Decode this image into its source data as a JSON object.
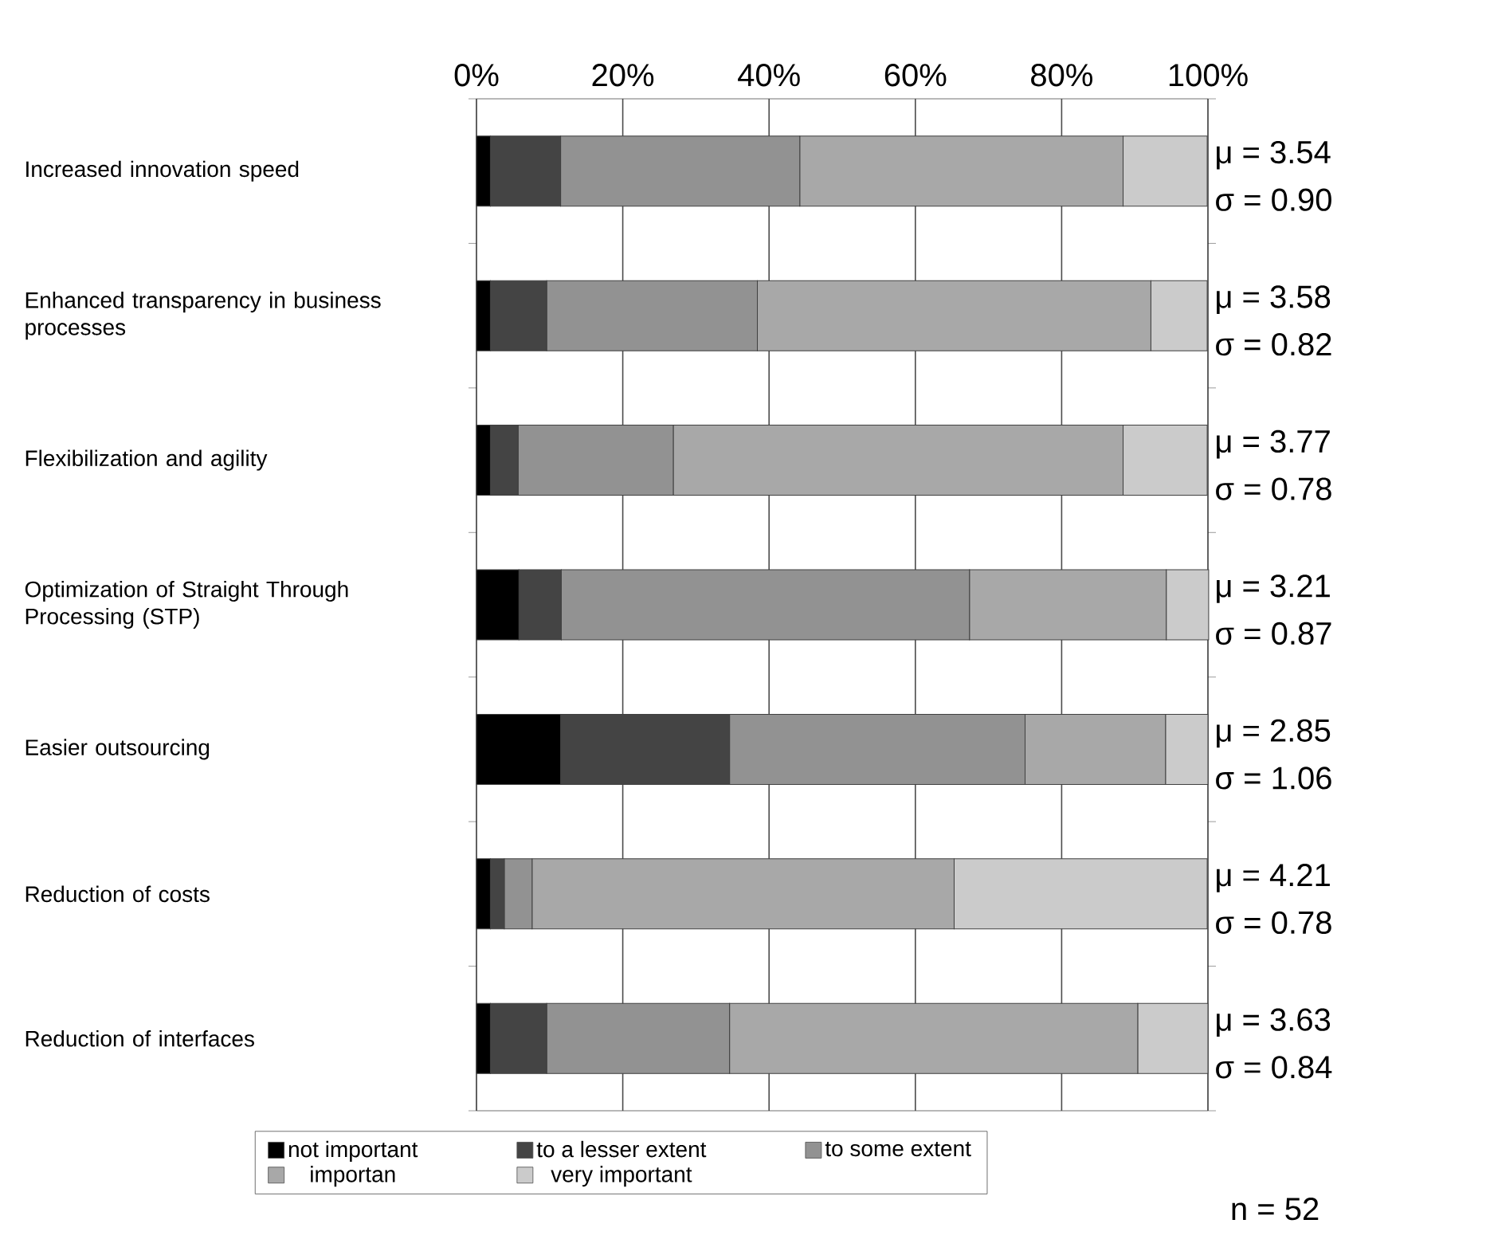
{
  "chart_data": {
    "type": "bar",
    "orientation": "horizontal",
    "stacked": true,
    "categories": [
      "Increased innovation speed",
      "Enhanced transparency in business processes",
      "Flexibilization and agility",
      "Optimization of Straight Through Processing (STP)",
      "Easier outsourcing",
      "Reduction of costs",
      "Reduction of interfaces"
    ],
    "series": [
      {
        "name": "not important",
        "color": "#000000",
        "values": [
          1.9,
          1.9,
          1.9,
          5.8,
          11.5,
          1.9,
          1.9
        ]
      },
      {
        "name": "to a lesser extent",
        "color": "#444444",
        "values": [
          9.6,
          7.7,
          3.8,
          5.8,
          23.1,
          1.9,
          7.7
        ]
      },
      {
        "name": "to some extent",
        "color": "#929292",
        "values": [
          32.7,
          28.8,
          21.2,
          55.8,
          40.4,
          3.8,
          25.0
        ]
      },
      {
        "name": "importan",
        "color": "#a8a8a8",
        "values": [
          44.2,
          53.8,
          61.5,
          26.9,
          19.2,
          57.7,
          55.8
        ]
      },
      {
        "name": "very important",
        "color": "#cbcbcb",
        "values": [
          11.5,
          7.7,
          11.5,
          5.8,
          5.8,
          34.6,
          9.6
        ]
      }
    ],
    "xlim": [
      0,
      100
    ],
    "xticks": [
      {
        "value": 0,
        "label": "0%"
      },
      {
        "value": 20,
        "label": "20%"
      },
      {
        "value": 40,
        "label": "40%"
      },
      {
        "value": 60,
        "label": "60%"
      },
      {
        "value": 80,
        "label": "80%"
      },
      {
        "value": 100,
        "label": "100%"
      }
    ],
    "grid": "x",
    "legend": "bottom",
    "annotations": [
      "μ = 3.54",
      "σ = 0.90",
      "μ = 3.58",
      "σ = 0.82",
      "μ = 3.77",
      "σ = 0.78",
      "μ = 3.21",
      "σ = 0.87",
      "μ = 2.85",
      "σ = 1.06",
      "μ = 4.21",
      "σ = 0.78",
      "μ = 3.63",
      "σ = 0.84",
      "n = 52"
    ]
  }
}
